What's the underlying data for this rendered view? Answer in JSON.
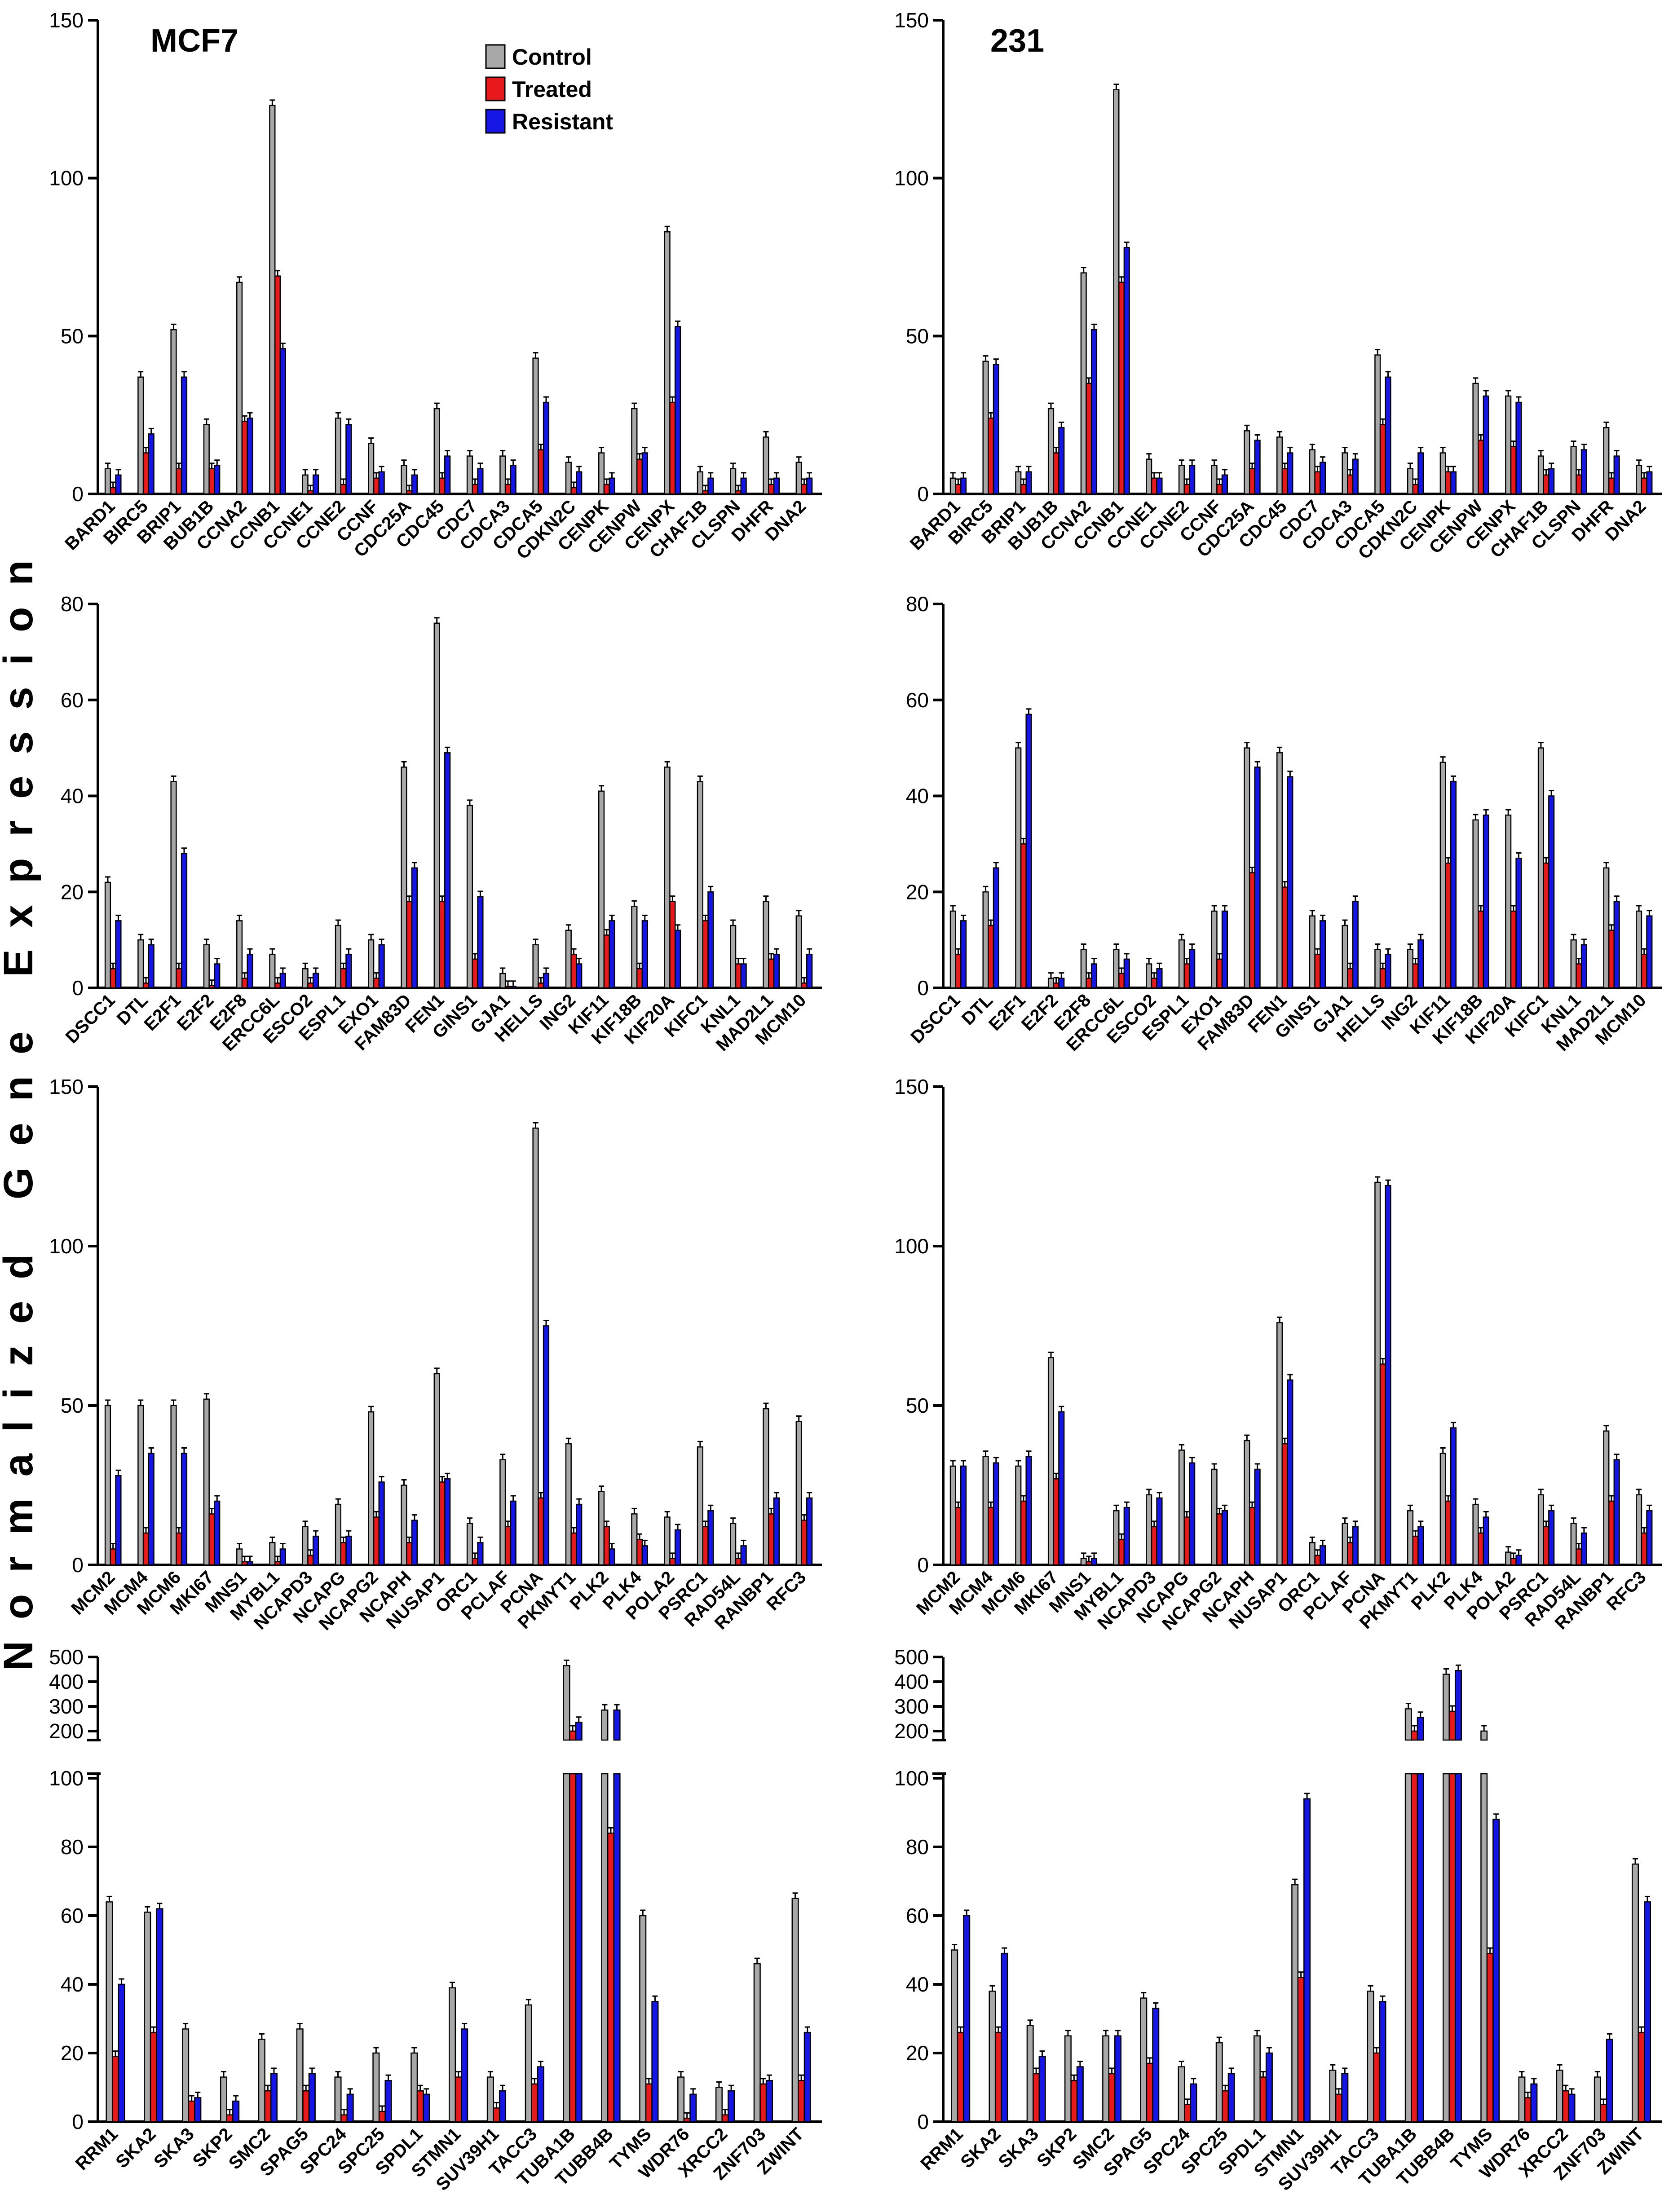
{
  "figure": {
    "ylabel": "Normalized Gene Expression",
    "legend": {
      "position": "top-center",
      "entries": [
        {
          "name": "Control",
          "color": "#a8a8a8"
        },
        {
          "name": "Treated",
          "color": "#e8191b"
        },
        {
          "name": "Resistant",
          "color": "#1515e6"
        }
      ]
    }
  },
  "chart_data": [
    {
      "id": "mcf7-r1",
      "type": "bar",
      "title": "MCF7",
      "ylim": [
        0,
        150
      ],
      "yticks": [
        0,
        50,
        100,
        150
      ],
      "categories": [
        "BARD1",
        "BIRC5",
        "BRIP1",
        "BUB1B",
        "CCNA2",
        "CCNB1",
        "CCNE1",
        "CCNE2",
        "CCNF",
        "CDC25A",
        "CDC45",
        "CDC7",
        "CDCA3",
        "CDCA5",
        "CDKN2C",
        "CENPK",
        "CENPW",
        "CENPX",
        "CHAF1B",
        "CLSPN",
        "DHFR",
        "DNA2"
      ],
      "series": [
        {
          "name": "Control",
          "values": [
            8,
            37,
            52,
            22,
            67,
            123,
            6,
            24,
            16,
            9,
            27,
            12,
            12,
            43,
            10,
            13,
            27,
            83,
            7,
            8,
            18,
            10
          ]
        },
        {
          "name": "Treated",
          "values": [
            2,
            13,
            8,
            8,
            23,
            69,
            1,
            3,
            5,
            1,
            5,
            3,
            3,
            14,
            2,
            3,
            11,
            29,
            1,
            1,
            3,
            3
          ]
        },
        {
          "name": "Resistant",
          "values": [
            6,
            19,
            37,
            9,
            24,
            46,
            6,
            22,
            7,
            6,
            12,
            8,
            9,
            29,
            7,
            5,
            13,
            53,
            5,
            5,
            5,
            5
          ]
        }
      ]
    },
    {
      "id": "231-r1",
      "type": "bar",
      "title": "231",
      "ylim": [
        0,
        150
      ],
      "yticks": [
        0,
        50,
        100,
        150
      ],
      "categories": [
        "BARD1",
        "BIRC5",
        "BRIP1",
        "BUB1B",
        "CCNA2",
        "CCNB1",
        "CCNE1",
        "CCNE2",
        "CCNF",
        "CDC25A",
        "CDC45",
        "CDC7",
        "CDCA3",
        "CDCA5",
        "CDKN2C",
        "CENPK",
        "CENPW",
        "CENPX",
        "CHAF1B",
        "CLSPN",
        "DHFR",
        "DNA2"
      ],
      "series": [
        {
          "name": "Control",
          "values": [
            5,
            42,
            7,
            27,
            70,
            128,
            11,
            9,
            9,
            20,
            18,
            14,
            13,
            44,
            8,
            13,
            35,
            31,
            12,
            15,
            21,
            9
          ]
        },
        {
          "name": "Treated",
          "values": [
            3,
            24,
            3,
            13,
            35,
            67,
            5,
            3,
            3,
            8,
            8,
            7,
            6,
            22,
            3,
            7,
            17,
            15,
            6,
            6,
            5,
            5
          ]
        },
        {
          "name": "Resistant",
          "values": [
            5,
            41,
            7,
            21,
            52,
            78,
            5,
            9,
            6,
            17,
            13,
            10,
            11,
            37,
            13,
            7,
            31,
            29,
            8,
            14,
            12,
            7
          ]
        }
      ]
    },
    {
      "id": "mcf7-r2",
      "type": "bar",
      "ylim": [
        0,
        80
      ],
      "yticks": [
        0,
        20,
        40,
        60,
        80
      ],
      "categories": [
        "DSCC1",
        "DTL",
        "E2F1",
        "E2F2",
        "E2F8",
        "ERCC6L",
        "ESCO2",
        "ESPL1",
        "EXO1",
        "FAM83D",
        "FEN1",
        "GINS1",
        "GJA1",
        "HELLS",
        "ING2",
        "KIF11",
        "KIF18B",
        "KIF20A",
        "KIFC1",
        "KNL1",
        "MAD2L1",
        "MCM10"
      ],
      "series": [
        {
          "name": "Control",
          "values": [
            22,
            10,
            43,
            9,
            14,
            7,
            4,
            13,
            10,
            46,
            76,
            38,
            3,
            9,
            12,
            41,
            17,
            46,
            43,
            13,
            18,
            15
          ]
        },
        {
          "name": "Treated",
          "values": [
            4,
            1,
            4,
            0.5,
            2,
            1,
            1,
            4,
            2,
            18,
            18,
            6,
            0.3,
            1,
            7,
            11,
            4,
            18,
            14,
            5,
            6,
            1
          ]
        },
        {
          "name": "Resistant",
          "values": [
            14,
            9,
            28,
            5,
            7,
            3,
            3,
            7,
            9,
            25,
            49,
            19,
            0.3,
            3,
            5,
            14,
            14,
            12,
            20,
            5,
            7,
            7
          ]
        }
      ]
    },
    {
      "id": "231-r2",
      "type": "bar",
      "ylim": [
        0,
        80
      ],
      "yticks": [
        0,
        20,
        40,
        60,
        80
      ],
      "categories": [
        "DSCC1",
        "DTL",
        "E2F1",
        "E2F2",
        "E2F8",
        "ERCC6L",
        "ESCO2",
        "ESPL1",
        "EXO1",
        "FAM83D",
        "FEN1",
        "GINS1",
        "GJA1",
        "HELLS",
        "ING2",
        "KIF11",
        "KIF18B",
        "KIF20A",
        "KIFC1",
        "KNL1",
        "MAD2L1",
        "MCM10"
      ],
      "series": [
        {
          "name": "Control",
          "values": [
            16,
            20,
            50,
            2,
            8,
            8,
            5,
            10,
            16,
            50,
            49,
            15,
            13,
            8,
            8,
            47,
            35,
            36,
            50,
            10,
            25,
            16
          ]
        },
        {
          "name": "Treated",
          "values": [
            7,
            13,
            30,
            1,
            2,
            3,
            2,
            5,
            6,
            24,
            21,
            7,
            4,
            4,
            5,
            26,
            16,
            16,
            26,
            5,
            12,
            7
          ]
        },
        {
          "name": "Resistant",
          "values": [
            14,
            25,
            57,
            2,
            5,
            6,
            4,
            8,
            16,
            46,
            44,
            14,
            18,
            7,
            10,
            43,
            36,
            27,
            40,
            9,
            18,
            15
          ]
        }
      ]
    },
    {
      "id": "mcf7-r3",
      "type": "bar",
      "ylim": [
        0,
        150
      ],
      "yticks": [
        0,
        50,
        100,
        150
      ],
      "categories": [
        "MCM2",
        "MCM4",
        "MCM6",
        "MKI67",
        "MNS1",
        "MYBL1",
        "NCAPD3",
        "NCAPG",
        "NCAPG2",
        "NCAPH",
        "NUSAP1",
        "ORC1",
        "PCLAF",
        "PCNA",
        "PKMYT1",
        "PLK2",
        "PLK4",
        "POLA2",
        "PSRC1",
        "RAD54L",
        "RANBP1",
        "RFC3"
      ],
      "series": [
        {
          "name": "Control",
          "values": [
            50,
            50,
            50,
            52,
            5,
            7,
            12,
            19,
            48,
            25,
            60,
            13,
            33,
            137,
            38,
            23,
            16,
            15,
            37,
            13,
            49,
            45
          ]
        },
        {
          "name": "Treated",
          "values": [
            5,
            10,
            10,
            16,
            1,
            1,
            3,
            7,
            15,
            7,
            26,
            2,
            12,
            21,
            10,
            12,
            8,
            2,
            12,
            2,
            16,
            14
          ]
        },
        {
          "name": "Resistant",
          "values": [
            28,
            35,
            35,
            20,
            1,
            5,
            9,
            9,
            26,
            14,
            27,
            7,
            20,
            75,
            19,
            5,
            6,
            11,
            17,
            6,
            21,
            21
          ]
        }
      ]
    },
    {
      "id": "231-r3",
      "type": "bar",
      "ylim": [
        0,
        150
      ],
      "yticks": [
        0,
        50,
        100,
        150
      ],
      "categories": [
        "MCM2",
        "MCM4",
        "MCM6",
        "MKI67",
        "MNS1",
        "MYBL1",
        "NCAPD3",
        "NCAPG",
        "NCAPG2",
        "NCAPH",
        "NUSAP1",
        "ORC1",
        "PCLAF",
        "PCNA",
        "PKMYT1",
        "PLK2",
        "PLK4",
        "POLA2",
        "PSRC1",
        "RAD54L",
        "RANBP1",
        "RFC3"
      ],
      "series": [
        {
          "name": "Control",
          "values": [
            31,
            34,
            31,
            65,
            2,
            17,
            22,
            36,
            30,
            39,
            76,
            7,
            13,
            120,
            17,
            35,
            19,
            4,
            22,
            13,
            42,
            22
          ]
        },
        {
          "name": "Treated",
          "values": [
            18,
            18,
            20,
            27,
            1,
            8,
            12,
            15,
            16,
            18,
            38,
            3,
            7,
            63,
            9,
            20,
            10,
            2,
            12,
            5,
            20,
            10
          ]
        },
        {
          "name": "Resistant",
          "values": [
            31,
            32,
            34,
            48,
            2,
            18,
            21,
            32,
            17,
            30,
            58,
            6,
            12,
            119,
            12,
            43,
            15,
            3,
            17,
            10,
            33,
            17
          ]
        }
      ]
    },
    {
      "id": "mcf7-r4",
      "type": "bar",
      "broken_axis": true,
      "ylim_lower": [
        0,
        100
      ],
      "ylim_upper": [
        200,
        500
      ],
      "yticks_lower": [
        0,
        20,
        40,
        60,
        80,
        100
      ],
      "yticks_upper": [
        200,
        300,
        400,
        500
      ],
      "categories": [
        "RRM1",
        "SKA2",
        "SKA3",
        "SKP2",
        "SMC2",
        "SPAG5",
        "SPC24",
        "SPC25",
        "SPDL1",
        "STMN1",
        "SUV39H1",
        "TACC3",
        "TUBA1B",
        "TUBB4B",
        "TYMS",
        "WDR76",
        "XRCC2",
        "ZNF703",
        "ZWINT"
      ],
      "series": [
        {
          "name": "Control",
          "values": [
            64,
            61,
            27,
            13,
            24,
            27,
            13,
            20,
            20,
            39,
            13,
            34,
            465,
            285,
            60,
            13,
            10,
            46,
            65
          ]
        },
        {
          "name": "Treated",
          "values": [
            19,
            26,
            6,
            2,
            9,
            9,
            2,
            3,
            9,
            13,
            4,
            11,
            170,
            84,
            11,
            1,
            2,
            11,
            12
          ]
        },
        {
          "name": "Resistant",
          "values": [
            40,
            62,
            7,
            6,
            14,
            14,
            8,
            12,
            8,
            27,
            9,
            16,
            235,
            285,
            35,
            8,
            9,
            12,
            26
          ]
        }
      ]
    },
    {
      "id": "231-r4",
      "type": "bar",
      "broken_axis": true,
      "ylim_lower": [
        0,
        100
      ],
      "ylim_upper": [
        200,
        500
      ],
      "yticks_lower": [
        0,
        20,
        40,
        60,
        80,
        100
      ],
      "yticks_upper": [
        200,
        300,
        400,
        500
      ],
      "categories": [
        "RRM1",
        "SKA2",
        "SKA3",
        "SKP2",
        "SMC2",
        "SPAG5",
        "SPC24",
        "SPC25",
        "SPDL1",
        "STMN1",
        "SUV39H1",
        "TACC3",
        "TUBA1B",
        "TUBB4B",
        "TYMS",
        "WDR76",
        "XRCC2",
        "ZNF703",
        "ZWINT"
      ],
      "series": [
        {
          "name": "Control",
          "values": [
            50,
            38,
            28,
            25,
            25,
            36,
            16,
            23,
            25,
            69,
            15,
            38,
            290,
            430,
            150,
            13,
            15,
            13,
            75
          ]
        },
        {
          "name": "Treated",
          "values": [
            26,
            26,
            14,
            12,
            14,
            17,
            5,
            9,
            13,
            42,
            8,
            20,
            150,
            280,
            49,
            7,
            9,
            5,
            26
          ]
        },
        {
          "name": "Resistant",
          "values": [
            60,
            49,
            19,
            16,
            25,
            33,
            11,
            14,
            20,
            94,
            14,
            35,
            255,
            445,
            88,
            11,
            8,
            24,
            64
          ]
        }
      ]
    }
  ]
}
